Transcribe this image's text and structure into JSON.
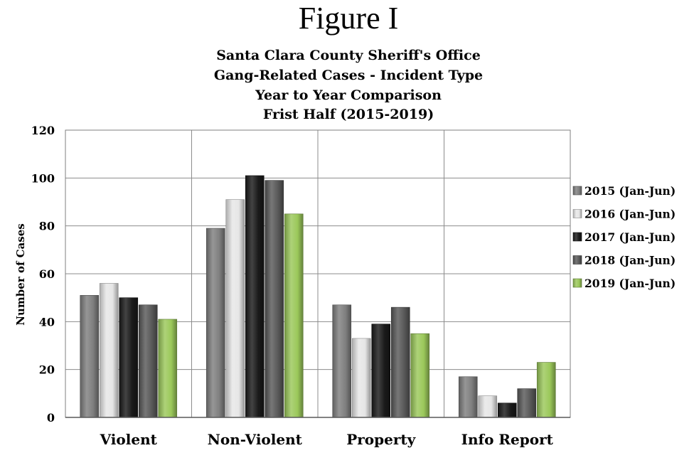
{
  "figure_title": "Figure I",
  "chart_data": {
    "type": "bar",
    "title_lines": [
      "Santa Clara County Sheriff's Office",
      "Gang-Related Cases - Incident Type",
      "Year to Year Comparison",
      "Frist Half (2015-2019)"
    ],
    "xlabel": "",
    "ylabel": "Number of Cases",
    "ylim": [
      0,
      120
    ],
    "yticks": [
      "0",
      "20",
      "40",
      "60",
      "80",
      "100",
      "120"
    ],
    "categories": [
      "Violent",
      "Non-Violent",
      "Property",
      "Info Report"
    ],
    "series": [
      {
        "name": "2015 (Jan-Jun)",
        "values": [
          51,
          79,
          47,
          17
        ],
        "color": "#7f7f7f"
      },
      {
        "name": "2016 (Jan-Jun)",
        "values": [
          56,
          91,
          33,
          9
        ],
        "color": "#e6e6e6"
      },
      {
        "name": "2017 (Jan-Jun)",
        "values": [
          50,
          101,
          39,
          6
        ],
        "color": "#1a1a1a"
      },
      {
        "name": "2018 (Jan-Jun)",
        "values": [
          47,
          99,
          46,
          12
        ],
        "color": "#595959"
      },
      {
        "name": "2019 (Jan-Jun)",
        "values": [
          41,
          85,
          35,
          23
        ],
        "color": "#9bc85a"
      }
    ],
    "grid": true,
    "legend_position": "right"
  }
}
